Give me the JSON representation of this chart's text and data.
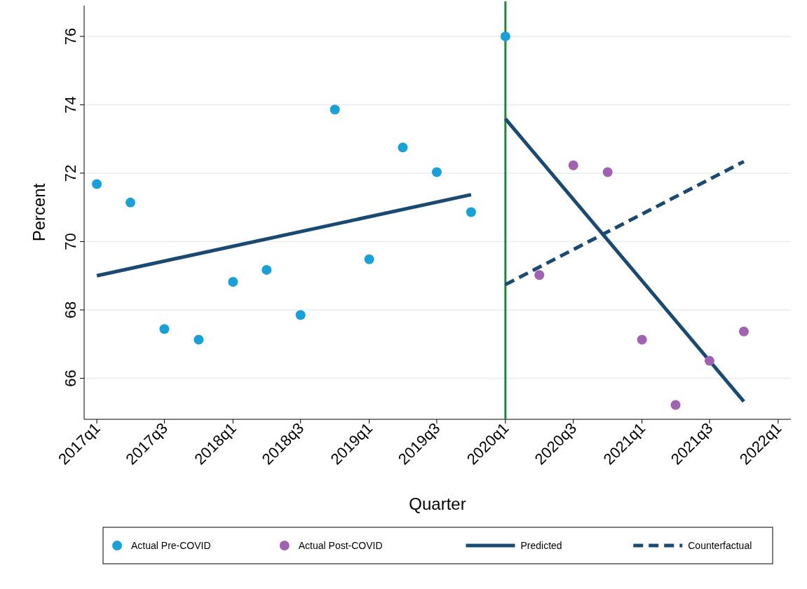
{
  "chart_data": {
    "type": "scatter",
    "xlabel": "Quarter",
    "ylabel": "Percent",
    "xlim": [
      "2016-11-28",
      "2022-02-04"
    ],
    "ylim": [
      64.8,
      76.9
    ],
    "xticks": [
      {
        "value": "2017-01",
        "label": "2017q1"
      },
      {
        "value": "2017-07",
        "label": "2017q3"
      },
      {
        "value": "2018-01",
        "label": "2018q1"
      },
      {
        "value": "2018-07",
        "label": "2018q3"
      },
      {
        "value": "2019-01",
        "label": "2019q1"
      },
      {
        "value": "2019-07",
        "label": "2019q3"
      },
      {
        "value": "2020-01",
        "label": "2020q1"
      },
      {
        "value": "2020-07",
        "label": "2020q3"
      },
      {
        "value": "2021-01",
        "label": "2021q1"
      },
      {
        "value": "2021-07",
        "label": "2021q3"
      },
      {
        "value": "2022-01",
        "label": "2022q1"
      }
    ],
    "yticks": [
      66,
      68,
      70,
      72,
      74,
      76
    ],
    "grid": "y",
    "legend": "bottom",
    "marker": "circle",
    "ref_lines": [
      {
        "axis": "x",
        "value": "2020-01",
        "color": "#1a8a3c"
      }
    ],
    "series": [
      {
        "name": "Actual Pre-COVID",
        "type": "scatter",
        "color": "#1aa0d8",
        "x": [
          "2017-01",
          "2017-04",
          "2017-07",
          "2017-10",
          "2018-01",
          "2018-04",
          "2018-07",
          "2018-10",
          "2019-01",
          "2019-04",
          "2019-07",
          "2019-10",
          "2020-01"
        ],
        "values": [
          71.68,
          71.14,
          67.44,
          67.13,
          68.82,
          69.17,
          67.85,
          73.86,
          69.48,
          72.75,
          72.03,
          70.86,
          76.0
        ]
      },
      {
        "name": "Actual Post-COVID",
        "type": "scatter",
        "color": "#a262b2",
        "x": [
          "2020-04",
          "2020-07",
          "2020-10",
          "2021-01",
          "2021-04",
          "2021-07",
          "2021-10"
        ],
        "values": [
          69.02,
          72.23,
          72.03,
          67.13,
          65.22,
          66.51,
          67.37
        ]
      },
      {
        "name": "Predicted",
        "type": "line",
        "marker": "none",
        "color": "#1a4a72",
        "line_style": "solid",
        "x": [
          "2017-01",
          "2019-10"
        ],
        "values": [
          69.0,
          71.37
        ]
      },
      {
        "type": "line",
        "marker": "none",
        "color": "#1a4a72",
        "line_style": "solid",
        "x": [
          "2020-01",
          "2021-10"
        ],
        "values": [
          73.59,
          65.32
        ]
      },
      {
        "name": "Counterfactual",
        "type": "line",
        "marker": "none",
        "color": "#1a4a72",
        "line_style": "dashed",
        "x": [
          "2020-01",
          "2021-10"
        ],
        "values": [
          68.74,
          72.34
        ]
      }
    ]
  }
}
